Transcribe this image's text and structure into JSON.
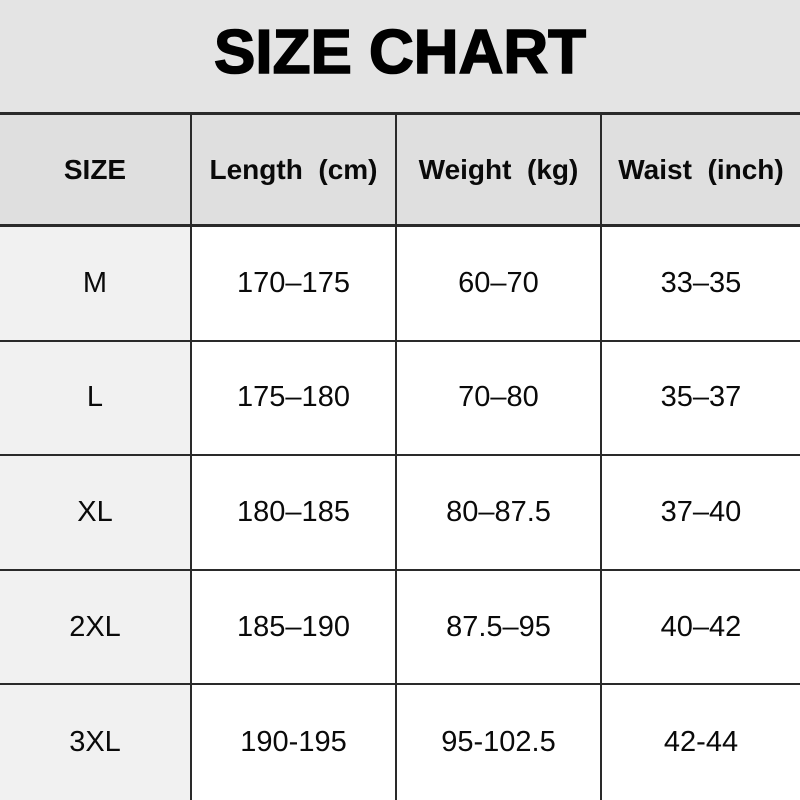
{
  "title": "SIZE CHART",
  "chart_data": {
    "type": "table",
    "title": "SIZE CHART",
    "columns": [
      "SIZE",
      "Length  (cm)",
      "Weight  (kg)",
      "Waist  (inch)"
    ],
    "rows": [
      [
        "M",
        "170–175",
        "60–70",
        "33–35"
      ],
      [
        "L",
        "175–180",
        "70–80",
        "35–37"
      ],
      [
        "XL",
        "180–185",
        "80–87.5",
        "37–40"
      ],
      [
        "2XL",
        "185–190",
        "87.5–95",
        "40–42"
      ],
      [
        "3XL",
        "190-195",
        "95-102.5",
        "42-44"
      ]
    ]
  },
  "colors": {
    "band_bg": "#e4e4e4",
    "header_bg": "#dfdfdf",
    "size_col_bg": "#f1f1f1",
    "cell_bg": "#ffffff",
    "border": "#2a2a2a",
    "text": "#0a0a0a"
  }
}
